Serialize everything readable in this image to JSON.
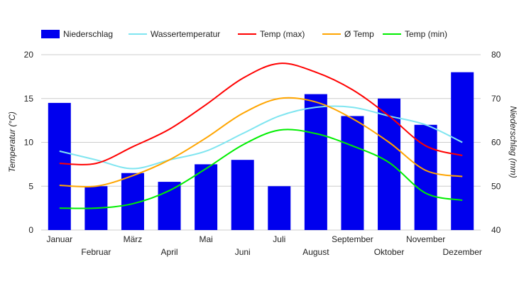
{
  "chart_data": {
    "type": "bar",
    "categories": [
      "Januar",
      "Februar",
      "März",
      "April",
      "Mai",
      "Juni",
      "Juli",
      "August",
      "September",
      "Oktober",
      "November",
      "Dezember"
    ],
    "ylabel_left": "Temperatur (°C)",
    "ylabel_right": "Niederschlag (mm)",
    "ylim_left": [
      0,
      20
    ],
    "ylim_right": [
      40,
      80
    ],
    "yticks_left": [
      0,
      5,
      10,
      15,
      20
    ],
    "yticks_right": [
      40,
      50,
      60,
      70,
      80
    ],
    "grid": true,
    "legend_position": "top",
    "series": [
      {
        "name": "Niederschlag",
        "kind": "bar",
        "axis": "right",
        "color": "#0000ee",
        "values": [
          69,
          50,
          53,
          51,
          55,
          56,
          50,
          71,
          66,
          70,
          64,
          76
        ]
      },
      {
        "name": "Wassertemperatur",
        "kind": "line",
        "axis": "left",
        "color": "#7fe5f0",
        "values": [
          9,
          8,
          7,
          8,
          9,
          11,
          13,
          14,
          14,
          13,
          12,
          10
        ]
      },
      {
        "name": "Temp (max)",
        "kind": "line",
        "axis": "left",
        "color": "#ff0000",
        "values": [
          7.6,
          7.6,
          9.5,
          11.5,
          14.3,
          17.3,
          19,
          18,
          16,
          13,
          9.6,
          8.5
        ]
      },
      {
        "name": "Ø Temp",
        "kind": "line",
        "axis": "left",
        "color": "#ffa500",
        "values": [
          5.1,
          5,
          6.2,
          8,
          10.5,
          13.3,
          15,
          14.6,
          12.7,
          10,
          6.8,
          6.1
        ]
      },
      {
        "name": "Temp (min)",
        "kind": "line",
        "axis": "left",
        "color": "#00ee00",
        "values": [
          2.5,
          2.5,
          3,
          4.5,
          7,
          9.7,
          11.4,
          11,
          9.6,
          7.7,
          4.2,
          3.4
        ]
      }
    ]
  }
}
